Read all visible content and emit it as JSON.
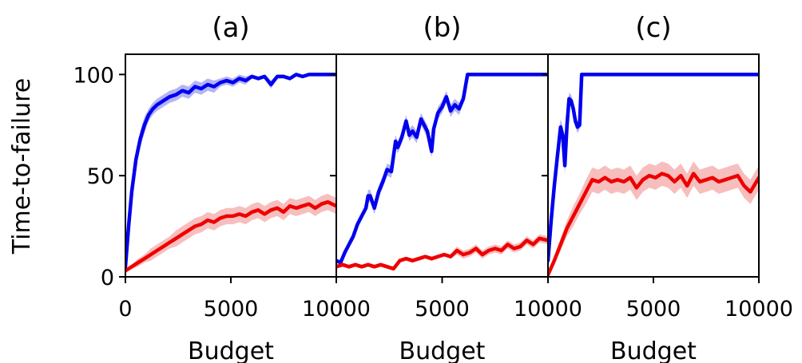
{
  "ylabel": "Time-to-failure",
  "colors": {
    "blue": "#0000ee",
    "red": "#ee0000",
    "blue_band": "#9b9bf2",
    "red_band": "#f4a8a8"
  },
  "chart_data": [
    {
      "type": "line",
      "title": "(a)",
      "xlabel": "Budget",
      "xlim": [
        0,
        10000
      ],
      "ylim": [
        0,
        110
      ],
      "xticks": [
        0,
        5000,
        10000
      ],
      "xtick_labels": [
        "0",
        "5000",
        "10000"
      ],
      "yticks": [
        0,
        50,
        100
      ],
      "ytick_labels": [
        "0",
        "50",
        "100"
      ],
      "series": [
        {
          "color": "blue",
          "x": [
            0,
            150,
            300,
            500,
            700,
            900,
            1100,
            1300,
            1500,
            1800,
            2100,
            2400,
            2700,
            3000,
            3300,
            3600,
            3900,
            4200,
            4500,
            4800,
            5100,
            5400,
            5700,
            6000,
            6300,
            6600,
            6900,
            7200,
            7500,
            7800,
            8100,
            8400,
            8700,
            9000,
            9500,
            10000
          ],
          "y": [
            5,
            25,
            42,
            58,
            68,
            75,
            80,
            83,
            85,
            87,
            89,
            90,
            92,
            91,
            94,
            93,
            95,
            94,
            96,
            97,
            96,
            98,
            97,
            99,
            98,
            99,
            95,
            99,
            99,
            98,
            100,
            99,
            100,
            100,
            100,
            100
          ],
          "band": [
            2,
            3,
            4,
            4,
            4,
            4,
            3,
            3,
            3,
            3,
            3,
            3,
            3,
            3,
            3,
            3,
            3,
            3,
            2,
            2,
            2,
            2,
            2,
            1,
            1,
            1,
            2,
            1,
            1,
            1,
            0,
            1,
            0,
            0,
            0,
            0
          ]
        },
        {
          "color": "red",
          "x": [
            0,
            300,
            600,
            900,
            1200,
            1500,
            1800,
            2100,
            2400,
            2700,
            3000,
            3300,
            3600,
            3900,
            4200,
            4500,
            4800,
            5100,
            5400,
            5700,
            6000,
            6300,
            6600,
            6900,
            7200,
            7500,
            7800,
            8100,
            8400,
            8700,
            9000,
            9300,
            9600,
            10000
          ],
          "y": [
            3,
            5,
            7,
            9,
            11,
            13,
            15,
            17,
            19,
            21,
            23,
            25,
            26,
            28,
            27,
            29,
            30,
            30,
            31,
            30,
            32,
            33,
            31,
            33,
            34,
            32,
            35,
            34,
            35,
            36,
            34,
            36,
            37,
            35
          ],
          "band": [
            1,
            1,
            2,
            2,
            3,
            3,
            3,
            3,
            4,
            4,
            4,
            4,
            4,
            4,
            4,
            4,
            4,
            4,
            4,
            4,
            4,
            4,
            4,
            4,
            4,
            4,
            4,
            4,
            4,
            4,
            4,
            4,
            4,
            4
          ]
        }
      ]
    },
    {
      "type": "line",
      "title": "(b)",
      "xlabel": "Budget",
      "xlim": [
        0,
        10000
      ],
      "ylim": [
        0,
        110
      ],
      "xticks": [
        0,
        5000,
        10000
      ],
      "xtick_labels": [
        "0",
        "5000",
        "10000"
      ],
      "yticks": [
        0,
        50,
        100
      ],
      "ytick_labels": [
        "",
        "",
        ""
      ],
      "series": [
        {
          "color": "blue",
          "x": [
            0,
            200,
            400,
            600,
            800,
            1000,
            1200,
            1400,
            1500,
            1600,
            1800,
            2000,
            2200,
            2400,
            2600,
            2800,
            2900,
            3100,
            3300,
            3450,
            3600,
            3800,
            4000,
            4100,
            4300,
            4500,
            4600,
            4800,
            5000,
            5200,
            5400,
            5600,
            5800,
            6000,
            6200,
            6400,
            6600,
            7000,
            7500,
            8000,
            9000,
            10000
          ],
          "y": [
            8,
            7,
            12,
            16,
            20,
            26,
            30,
            34,
            40,
            40,
            34,
            42,
            47,
            53,
            52,
            67,
            64,
            69,
            77,
            70,
            72,
            69,
            78,
            76,
            72,
            62,
            73,
            81,
            84,
            89,
            82,
            85,
            83,
            88,
            100,
            100,
            100,
            100,
            100,
            100,
            100,
            100
          ],
          "band": [
            1,
            1,
            1,
            2,
            2,
            2,
            2,
            2,
            3,
            3,
            3,
            3,
            3,
            3,
            3,
            3,
            3,
            3,
            3,
            3,
            3,
            3,
            3,
            3,
            3,
            3,
            3,
            3,
            3,
            3,
            3,
            3,
            3,
            2,
            0,
            0,
            0,
            0,
            0,
            0,
            0,
            0
          ]
        },
        {
          "color": "red",
          "x": [
            0,
            300,
            600,
            900,
            1200,
            1500,
            1800,
            2100,
            2400,
            2700,
            3000,
            3300,
            3600,
            3900,
            4200,
            4500,
            4800,
            5100,
            5400,
            5700,
            6000,
            6300,
            6600,
            6900,
            7200,
            7500,
            7800,
            8100,
            8400,
            8700,
            9000,
            9300,
            9600,
            10000
          ],
          "y": [
            5,
            6,
            5,
            6,
            5,
            6,
            5,
            6,
            5,
            4,
            8,
            9,
            8,
            9,
            10,
            9,
            10,
            11,
            10,
            13,
            11,
            12,
            14,
            11,
            13,
            14,
            13,
            16,
            14,
            15,
            18,
            16,
            19,
            18
          ],
          "band": [
            1,
            1,
            1,
            1,
            1,
            1,
            1,
            1,
            1,
            1,
            1,
            1,
            1,
            1,
            1,
            1,
            1,
            1,
            1,
            2,
            2,
            2,
            2,
            2,
            2,
            2,
            2,
            2,
            2,
            2,
            2,
            2,
            2,
            2
          ]
        }
      ]
    },
    {
      "type": "line",
      "title": "(c)",
      "xlabel": "Budget",
      "xlim": [
        0,
        10000
      ],
      "ylim": [
        0,
        110
      ],
      "xticks": [
        0,
        5000,
        10000
      ],
      "xtick_labels": [
        "0",
        "5000",
        "10000"
      ],
      "yticks": [
        0,
        50,
        100
      ],
      "ytick_labels": [
        "",
        "",
        ""
      ],
      "series": [
        {
          "color": "blue",
          "x": [
            0,
            150,
            300,
            450,
            600,
            700,
            800,
            900,
            1000,
            1100,
            1200,
            1300,
            1400,
            1500,
            1600,
            1700,
            1800,
            2000,
            3000,
            4000,
            5000,
            6000,
            7000,
            8000,
            9000,
            10000
          ],
          "y": [
            8,
            28,
            45,
            60,
            74,
            70,
            55,
            75,
            88,
            87,
            83,
            77,
            74,
            75,
            100,
            100,
            100,
            100,
            100,
            100,
            100,
            100,
            100,
            100,
            100,
            100
          ],
          "band": [
            2,
            3,
            4,
            4,
            4,
            4,
            4,
            4,
            3,
            3,
            3,
            3,
            3,
            2,
            0,
            0,
            0,
            0,
            0,
            0,
            0,
            0,
            0,
            0,
            0,
            0
          ]
        },
        {
          "color": "red",
          "x": [
            0,
            300,
            600,
            900,
            1200,
            1500,
            1800,
            2100,
            2400,
            2700,
            3000,
            3300,
            3600,
            3900,
            4200,
            4500,
            4800,
            5100,
            5400,
            5700,
            6000,
            6300,
            6600,
            6900,
            7200,
            7500,
            7800,
            8100,
            8400,
            8700,
            9000,
            9300,
            9600,
            10000
          ],
          "y": [
            1,
            8,
            16,
            24,
            30,
            36,
            42,
            48,
            47,
            49,
            47,
            48,
            47,
            49,
            44,
            48,
            50,
            49,
            51,
            50,
            47,
            50,
            45,
            51,
            47,
            48,
            49,
            47,
            48,
            49,
            50,
            45,
            42,
            49
          ],
          "band": [
            1,
            2,
            3,
            4,
            5,
            5,
            6,
            6,
            6,
            6,
            6,
            6,
            6,
            6,
            6,
            6,
            6,
            6,
            6,
            6,
            6,
            6,
            6,
            6,
            6,
            6,
            6,
            6,
            6,
            6,
            6,
            6,
            6,
            6
          ]
        }
      ]
    }
  ]
}
